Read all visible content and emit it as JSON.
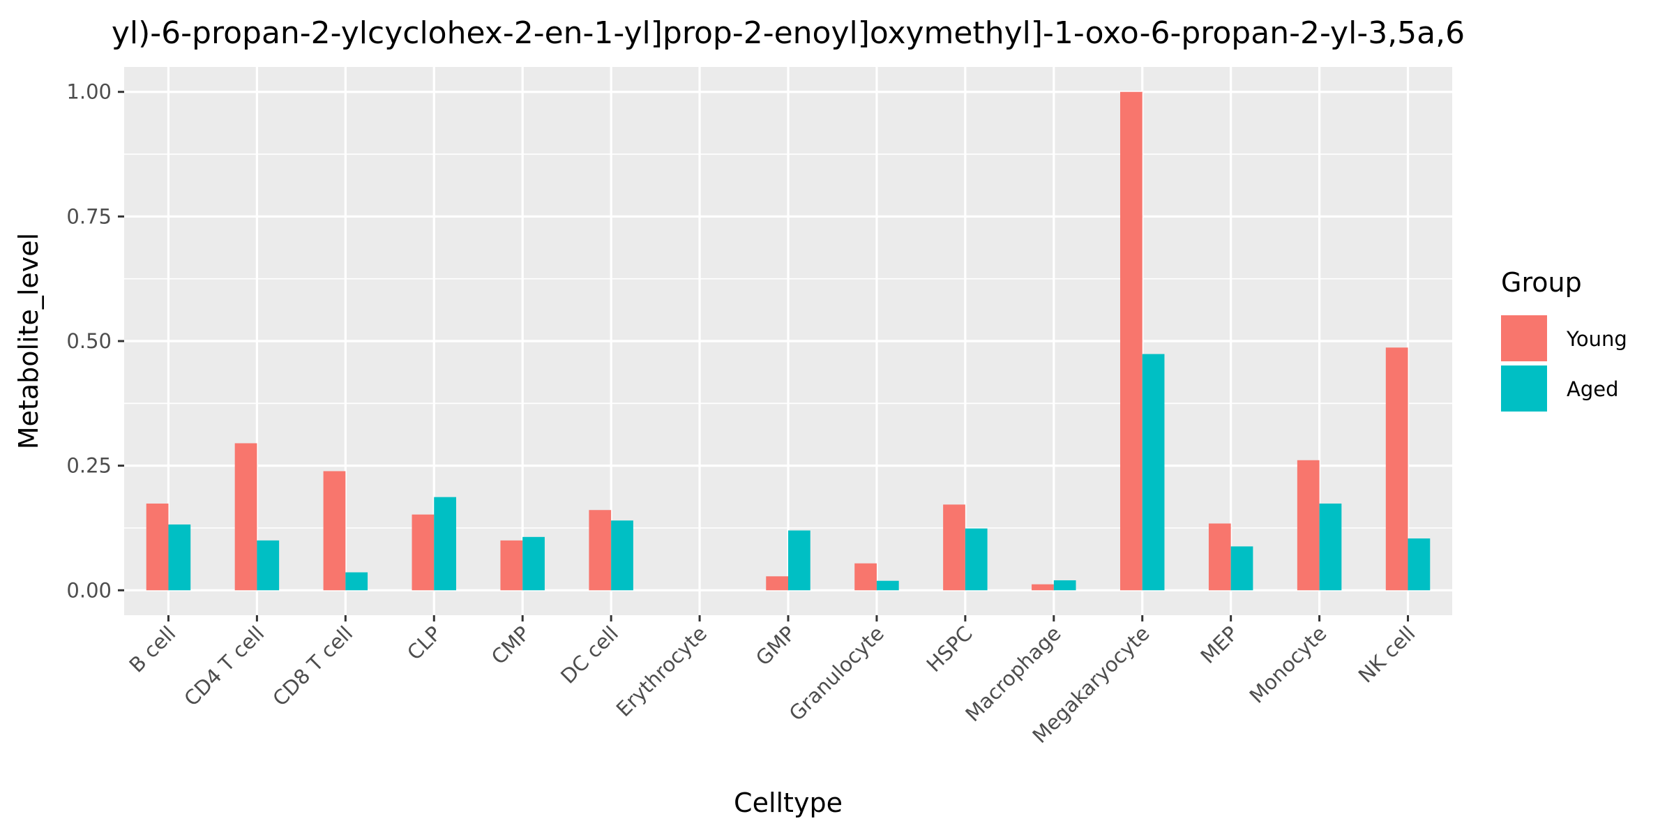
{
  "chart_data": {
    "type": "bar",
    "title": "yl)-6-propan-2-ylcyclohex-2-en-1-yl]prop-2-enoyl]oxymethyl]-1-oxo-6-propan-2-yl-3,5a,6",
    "xlabel": "Celltype",
    "ylabel": "Metabolite_level",
    "ylim": [
      -0.05,
      1.05
    ],
    "yticks": [
      0.0,
      0.25,
      0.5,
      0.75,
      1.0
    ],
    "ytick_labels": [
      "0.00",
      "0.25",
      "0.50",
      "0.75",
      "1.00"
    ],
    "grid": true,
    "legend_position": "right",
    "legend_title": "Group",
    "categories": [
      "B cell",
      "CD4 T cell",
      "CD8 T cell",
      "CLP",
      "CMP",
      "DC cell",
      "Erythrocyte",
      "GMP",
      "Granulocyte",
      "HSPC",
      "Macrophage",
      "Megakaryocyte",
      "MEP",
      "Monocyte",
      "NK cell"
    ],
    "series": [
      {
        "name": "Young",
        "color": "#F8766D",
        "values": [
          0.174,
          0.295,
          0.239,
          0.152,
          0.1,
          0.161,
          0.0,
          0.028,
          0.054,
          0.172,
          0.012,
          1.0,
          0.134,
          0.261,
          0.487
        ]
      },
      {
        "name": "Aged",
        "color": "#00BFC4",
        "values": [
          0.132,
          0.1,
          0.036,
          0.187,
          0.107,
          0.14,
          0.0,
          0.12,
          0.019,
          0.124,
          0.02,
          0.474,
          0.088,
          0.174,
          0.104
        ]
      }
    ]
  }
}
